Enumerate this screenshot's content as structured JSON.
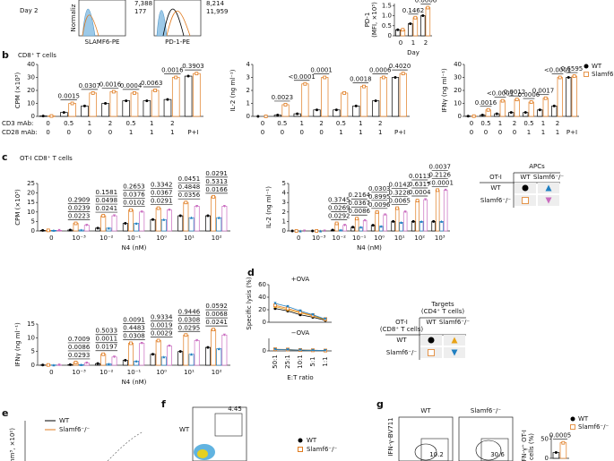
{
  "panel_letters": [
    "b",
    "c",
    "d",
    "e",
    "f",
    "g"
  ],
  "panel_a": {
    "day": "Day 2",
    "y_label": "Normaliz",
    "x_labels": [
      "SLAMF6-PE",
      "PD-1-PE"
    ],
    "counts": [
      [
        "7,388",
        "177"
      ],
      [
        "8,214",
        "11,959"
      ]
    ]
  },
  "panel_b": {
    "title": "CD8⁺ T cells"
  },
  "panel_e": {
    "legend": [
      "WT",
      "Slamf6⁻/⁻"
    ],
    "y_label": "(mm³, ×10²)"
  },
  "panel_f": {
    "row_label": "WT",
    "gate": "4.45",
    "legend": [
      "WT",
      "Slamf6⁻/⁻"
    ]
  },
  "panel_g": {
    "columns": [
      "WT",
      "Slamf6⁻/⁻"
    ],
    "y_label": "IFN-γ-BV711",
    "gates": [
      "10.2",
      "30.6"
    ]
  },
  "chart_data": [
    {
      "type": "bar",
      "y_label": [
        "PD-1",
        "(MFI, ×10³)"
      ],
      "x_label": "Day",
      "categories": [
        "0",
        "1",
        "2"
      ],
      "ylim": [
        0,
        1.6
      ],
      "yticks": [
        0,
        0.5,
        {
          "value": 1,
          "label": "1.0"
        },
        1.5
      ],
      "series": [
        {
          "color": "#000000",
          "marker": "circle",
          "values": [
            0.3,
            0.6,
            1.0
          ]
        },
        {
          "color": "#e07b1f",
          "marker": "square",
          "values": [
            0.3,
            0.9,
            1.4
          ]
        }
      ],
      "p_values": [
        null,
        "0.1462",
        "0.0006"
      ]
    },
    {
      "type": "bar",
      "y_label": [
        "CPM (×10³)"
      ],
      "row_labels": [
        "CD3 mAb:",
        "CD28 mAb:"
      ],
      "categories": [
        "0",
        "0.5",
        "1",
        "2",
        "0.5",
        "1",
        "2",
        null
      ],
      "categories2": [
        "0",
        "0",
        "0",
        "0",
        "1",
        "1",
        "1",
        "P+I"
      ],
      "ylim": [
        0,
        40
      ],
      "yticks": [
        0,
        10,
        20,
        30,
        40
      ],
      "series": [
        {
          "name": "WT",
          "color": "#000000",
          "marker": "circle",
          "values": [
            0.3,
            3,
            8,
            10,
            12,
            12,
            13,
            31
          ]
        },
        {
          "name": "Slamf6⁻/⁻",
          "color": "#e07b1f",
          "marker": "square",
          "values": [
            0.3,
            10,
            18,
            19,
            18,
            20,
            30,
            33
          ]
        }
      ],
      "p_values": [
        null,
        "0.0015",
        "0.0307",
        "0.0016",
        "0.0004",
        "0.0063",
        "0.0016",
        "0.3903"
      ]
    },
    {
      "type": "bar",
      "y_label": [
        "IL-2 (ng ml⁻¹)"
      ],
      "categories": [
        "0",
        "0.5",
        "1",
        "2",
        "0.5",
        "1",
        "2",
        null
      ],
      "categories2": [
        "0",
        "0",
        "0",
        "0",
        "1",
        "1",
        "1",
        "P+I"
      ],
      "ylim": [
        0,
        4
      ],
      "yticks": [
        0,
        1,
        2,
        3,
        4
      ],
      "series": [
        {
          "name": "WT",
          "color": "#000000",
          "marker": "circle",
          "values": [
            0,
            0.1,
            0.2,
            0.5,
            0.5,
            0.8,
            1.2,
            3.0
          ]
        },
        {
          "name": "Slamf6⁻/⁻",
          "color": "#e07b1f",
          "marker": "square",
          "values": [
            0,
            0.9,
            2.5,
            3.0,
            1.8,
            2.3,
            3.0,
            3.3
          ]
        }
      ],
      "p_values": [
        null,
        "0.0023",
        "<0.0001",
        "0.0001",
        null,
        "0.0018",
        "0.0006",
        "0.4020"
      ]
    },
    {
      "type": "bar",
      "y_label": [
        "IFNγ (ng ml⁻¹)"
      ],
      "legend": "right",
      "categories": [
        "0",
        "0.5",
        "1",
        "2",
        "0.5",
        "1",
        "2",
        null
      ],
      "categories2": [
        "0",
        "0",
        "0",
        "0",
        "1",
        "1",
        "1",
        "P+I"
      ],
      "ylim": [
        0,
        40
      ],
      "yticks": [
        0,
        10,
        20,
        30,
        40
      ],
      "series": [
        {
          "name": "WT",
          "color": "#000000",
          "marker": "circle",
          "values": [
            0.2,
            1,
            2,
            3,
            3,
            5,
            8,
            30
          ]
        },
        {
          "name": "Slamf6⁻/⁻",
          "color": "#e07b1f",
          "marker": "square",
          "values": [
            0.2,
            5,
            12,
            13,
            11,
            14,
            30,
            31
          ]
        }
      ],
      "p_values": [
        null,
        "0.0016",
        "<0.0001",
        "0.0012",
        "0.0006",
        "0.0017",
        "<0.0001",
        "0.6595"
      ]
    },
    {
      "type": "bar",
      "subtitle": "OT-I CD8⁺ T cells",
      "y_label": [
        "CPM (×10³)"
      ],
      "x_label": "N4 (nM)",
      "categories": [
        "0",
        "10⁻³",
        "10⁻²",
        "10⁻¹",
        "10⁰",
        "10¹",
        "10²"
      ],
      "ylim": [
        0,
        25
      ],
      "yticks": [
        0,
        5,
        10,
        15,
        20,
        25
      ],
      "series": [
        {
          "row": "WT",
          "column": "WT",
          "color": "#000000",
          "marker": "circle",
          "values": [
            0.3,
            0.5,
            1.5,
            4,
            6,
            8,
            8
          ]
        },
        {
          "row": "Slamf6⁻/⁻",
          "column": "WT",
          "color": "#e07b1f",
          "marker": "square",
          "values": [
            0.3,
            4,
            8,
            11,
            12,
            15,
            18
          ]
        },
        {
          "row": "WT",
          "column": "Slamf6⁻/⁻",
          "color": "#1f7fc1",
          "marker": "triangle",
          "values": [
            0.3,
            0.5,
            1.5,
            4,
            6,
            7,
            7
          ]
        },
        {
          "row": "Slamf6⁻/⁻",
          "column": "Slamf6⁻/⁻",
          "color": "#c96bbf",
          "marker": "triangle-down",
          "values": [
            0.3,
            3,
            8,
            10,
            11,
            13,
            13
          ]
        }
      ],
      "p_values": [
        null,
        [
          "0.2909",
          "0.0239",
          "0.0223"
        ],
        [
          "0.1581",
          "0.0498",
          "0.0241"
        ],
        [
          "0.2653",
          "0.0376",
          "0.0102"
        ],
        [
          "0.3342",
          "0.0367",
          "0.0291"
        ],
        [
          "0.0451",
          "0.4848",
          "0.0356"
        ],
        [
          "0.0291",
          "0.5313",
          "0.0166"
        ]
      ]
    },
    {
      "type": "bar",
      "y_label": [
        "IL-2 (ng ml⁻¹)"
      ],
      "x_label": "N4 (nM)",
      "categories": [
        "0",
        "10⁻³",
        "10⁻²",
        "10⁻¹",
        "10⁰",
        "10¹",
        "10²",
        "10³"
      ],
      "ylim": [
        0,
        5
      ],
      "yticks": [
        0,
        1,
        2,
        3,
        4,
        5
      ],
      "legend_table": {
        "title": [
          "APCs"
        ],
        "corner": [
          "OT-I"
        ],
        "columns": [
          "WT",
          "Slamf6⁻/⁻"
        ],
        "rows": [
          "WT",
          "Slamf6⁻/⁻"
        ]
      },
      "series": [
        {
          "row": "WT",
          "column": "WT",
          "color": "#000000",
          "marker": "circle",
          "values": [
            0,
            0,
            0.1,
            0.4,
            0.6,
            1.0,
            1.0,
            1.0
          ]
        },
        {
          "row": "Slamf6⁻/⁻",
          "column": "WT",
          "color": "#e07b1f",
          "marker": "square",
          "values": [
            0,
            0,
            0.8,
            1.3,
            2.0,
            2.4,
            3.2,
            4.3
          ]
        },
        {
          "row": "WT",
          "column": "Slamf6⁻/⁻",
          "color": "#1f7fc1",
          "marker": "triangle",
          "values": [
            0,
            0,
            0.1,
            0.4,
            0.5,
            0.9,
            1.0,
            1.0
          ]
        },
        {
          "row": "Slamf6⁻/⁻",
          "column": "Slamf6⁻/⁻",
          "color": "#c96bbf",
          "marker": "triangle-down",
          "values": [
            0,
            0,
            0.6,
            1.1,
            1.7,
            2.0,
            3.3,
            4.3
          ]
        }
      ],
      "p_values": [
        null,
        null,
        [
          "0.3745",
          "0.0269",
          "0.0292"
        ],
        [
          "0.2164",
          "0.0367",
          "0.0086"
        ],
        [
          "0.0303",
          "0.8995",
          "0.0096"
        ],
        [
          "0.0142",
          "0.3228",
          "0.0065"
        ],
        [
          "0.0113",
          "0.6317",
          "0.0004"
        ],
        [
          "0.0037",
          "0.2126",
          "<0.0001"
        ]
      ]
    },
    {
      "type": "bar",
      "y_label": [
        "IFNγ (ng ml⁻¹)"
      ],
      "x_label": "N4 (nM)",
      "categories": [
        "0",
        "10⁻³",
        "10⁻²",
        "10⁻¹",
        "10⁰",
        "10¹",
        "10²"
      ],
      "ylim": [
        0,
        15
      ],
      "yticks": [
        0,
        5,
        10,
        15
      ],
      "series": [
        {
          "color": "#000000",
          "marker": "circle",
          "values": [
            0.1,
            0.2,
            0.6,
            1.8,
            4,
            5,
            6.5
          ]
        },
        {
          "color": "#e07b1f",
          "marker": "square",
          "values": [
            0.1,
            1,
            4,
            8,
            9,
            11,
            13
          ]
        },
        {
          "color": "#1f7fc1",
          "marker": "triangle",
          "values": [
            0.1,
            0.2,
            0.5,
            1.5,
            3,
            4,
            6
          ]
        },
        {
          "color": "#c96bbf",
          "marker": "triangle-down",
          "values": [
            0.1,
            0.8,
            3,
            8,
            7,
            9,
            11
          ]
        }
      ],
      "p_values": [
        null,
        [
          "0.7009",
          "0.0086",
          "0.0293"
        ],
        [
          "0.5033",
          "0.0011",
          "0.0197"
        ],
        [
          "0.0091",
          "0.4483",
          "0.0308"
        ],
        [
          "0.9334",
          "0.0019",
          "0.0029"
        ],
        [
          "0.9446",
          "0.0308",
          "0.0295"
        ],
        [
          "0.0592",
          "0.0068",
          "0.0241"
        ]
      ]
    },
    {
      "type": "line",
      "annotation": "+OVA",
      "y_label": [
        "Specific lysis (%)"
      ],
      "categories": [
        null,
        null,
        null,
        null,
        null
      ],
      "ylim": [
        0,
        60
      ],
      "yticks": [
        0,
        20,
        40,
        60
      ],
      "legend_table": {
        "title": [
          "Targets",
          "(CD4⁺ T cells)"
        ],
        "corner": [
          "OT-I",
          "(CD8⁺ T cells)"
        ],
        "columns": [
          "WT",
          "Slamf6⁻/⁻"
        ],
        "rows": [
          "WT",
          "Slamf6⁻/⁻"
        ]
      },
      "series": [
        {
          "row": "WT",
          "column": "WT",
          "color": "#000000",
          "marker": "circle",
          "values": [
            22,
            18,
            12,
            8,
            3
          ]
        },
        {
          "row": "WT",
          "column": "Slamf6⁻/⁻",
          "color": "#e8a317",
          "marker": "triangle",
          "values": [
            25,
            20,
            15,
            10,
            4
          ]
        },
        {
          "row": "Slamf6⁻/⁻",
          "column": "WT",
          "color": "#e07b1f",
          "marker": "square",
          "values": [
            27,
            22,
            16,
            11,
            5
          ]
        },
        {
          "row": "Slamf6⁻/⁻",
          "column": "Slamf6⁻/⁻",
          "color": "#1f7fc1",
          "marker": "triangle-down",
          "values": [
            30,
            25,
            18,
            12,
            5
          ]
        }
      ]
    },
    {
      "type": "line",
      "annotation": "−OVA",
      "x_label": "E:T ratio",
      "categories": [
        "50:1",
        "25:1",
        "10:1",
        "5:1",
        "1:1"
      ],
      "ylim": [
        0,
        10
      ],
      "yticks": [
        0
      ],
      "series": [
        {
          "color": "#000000",
          "marker": "circle",
          "values": [
            1,
            1,
            0.5,
            0.5,
            0.3
          ]
        },
        {
          "color": "#e8a317",
          "marker": "triangle",
          "values": [
            1.2,
            1,
            0.6,
            0.4,
            0.3
          ]
        },
        {
          "color": "#e07b1f",
          "marker": "square",
          "values": [
            1.3,
            1.1,
            0.7,
            0.5,
            0.3
          ]
        },
        {
          "color": "#1f7fc1",
          "marker": "triangle-down",
          "values": [
            1.1,
            0.9,
            0.6,
            0.4,
            0.3
          ]
        }
      ]
    },
    {
      "type": "bar",
      "y_label": [
        "IFN-γ⁺ OT-I",
        "cells (%)"
      ],
      "legend": "top-right",
      "categories": [
        null
      ],
      "ylim": [
        0,
        60
      ],
      "yticks": [
        0,
        50
      ],
      "series": [
        {
          "name": "WT",
          "color": "#000000",
          "marker": "circle",
          "values": [
            15
          ]
        },
        {
          "name": "Slamf6⁻/⁻",
          "color": "#e07b1f",
          "marker": "square",
          "values": [
            40
          ]
        }
      ],
      "p_values": [
        "0.0005"
      ]
    }
  ]
}
